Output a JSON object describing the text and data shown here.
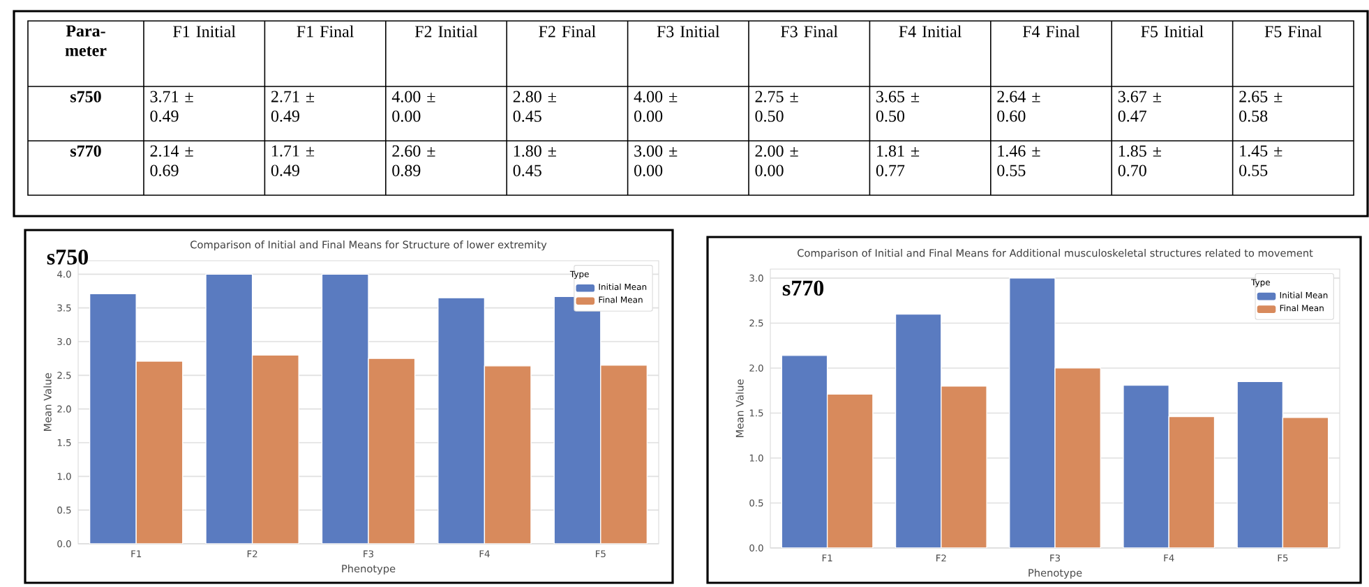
{
  "chart_data": [
    {
      "type": "other",
      "annotations": [
        "Para-meter",
        "F1 Initial",
        "F1 Final",
        "F2 Initial",
        "F2 Final",
        "F3 Initial",
        "F3 Final",
        "F4 Initial",
        "F4 Final",
        "F5 Initial",
        "F5 Final",
        "s750",
        "3.71 ± 0.49",
        "2.71 ± 0.49",
        "4.00 ± 0.00",
        "2.80 ± 0.45",
        "4.00 ± 0.00",
        "2.75 ± 0.50",
        "3.65 ± 0.50",
        "2.64 ± 0.60",
        "3.67 ± 0.47",
        "2.65 ± 0.58",
        "s770",
        "2.14 ± 0.69",
        "1.71 ± 0.49",
        "2.60 ± 0.89",
        "1.80 ± 0.45",
        "3.00 ± 0.00",
        "2.00 ± 0.00",
        "1.81 ± 0.77",
        "1.46 ± 0.55",
        "1.85 ± 0.70",
        "1.45 ± 0.55"
      ]
    },
    {
      "type": "bar",
      "title": "Comparison of Initial and Final Means for Structure of lower extremity",
      "xlabel": "Phenotype",
      "ylabel": "Mean Value",
      "legend_title": "Type",
      "annotations": [
        "s750"
      ],
      "categories": [
        "F1",
        "F2",
        "F3",
        "F4",
        "F5"
      ],
      "series": [
        {
          "name": "Initial Mean",
          "color": "#5a7bc0",
          "values": [
            3.71,
            4.0,
            4.0,
            3.65,
            3.67
          ]
        },
        {
          "name": "Final Mean",
          "color": "#d88a5c",
          "values": [
            2.71,
            2.8,
            2.75,
            2.64,
            2.65
          ]
        }
      ],
      "ylim": [
        0,
        4.2
      ],
      "yticks": [
        {
          "value": 0,
          "label": "0.0"
        },
        {
          "value": 0.5,
          "label": "0.5"
        },
        {
          "value": 1,
          "label": "1.0"
        },
        {
          "value": 1.5,
          "label": "1.5"
        },
        {
          "value": 2,
          "label": "2.0"
        },
        {
          "value": 2.5,
          "label": "2.5"
        },
        {
          "value": 3,
          "label": "3.0"
        },
        {
          "value": 3.5,
          "label": "3.5"
        },
        {
          "value": 4,
          "label": "4.0"
        }
      ],
      "grid": "y",
      "legend": "top right"
    },
    {
      "type": "bar",
      "title": "Comparison of Initial and Final Means for Additional musculoskeletal structures related to movement",
      "xlabel": "Phenotype",
      "ylabel": "Mean Value",
      "legend_title": "Type",
      "annotations": [
        "s770"
      ],
      "categories": [
        "F1",
        "F2",
        "F3",
        "F4",
        "F5"
      ],
      "series": [
        {
          "name": "Initial Mean",
          "color": "#5a7bc0",
          "values": [
            2.14,
            2.6,
            3.0,
            1.81,
            1.85
          ]
        },
        {
          "name": "Final Mean",
          "color": "#d88a5c",
          "values": [
            1.71,
            1.8,
            2.0,
            1.46,
            1.45
          ]
        }
      ],
      "ylim": [
        0,
        3.1
      ],
      "yticks": [
        {
          "value": 0,
          "label": "0.0"
        },
        {
          "value": 0.5,
          "label": "0.5"
        },
        {
          "value": 1,
          "label": "1.0"
        },
        {
          "value": 1.5,
          "label": "1.5"
        },
        {
          "value": 2,
          "label": "2.0"
        },
        {
          "value": 2.5,
          "label": "2.5"
        },
        {
          "value": 3,
          "label": "3.0"
        }
      ],
      "grid": "y",
      "legend": "top right"
    }
  ]
}
